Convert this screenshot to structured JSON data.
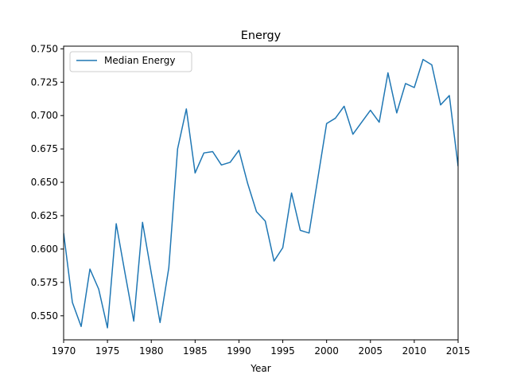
{
  "chart_data": {
    "type": "line",
    "title": "Energy",
    "xlabel": "Year",
    "ylabel": "",
    "xlim": [
      1970,
      2015
    ],
    "ylim": [
      0.532,
      0.752
    ],
    "xticks": [
      1970,
      1975,
      1980,
      1985,
      1990,
      1995,
      2000,
      2005,
      2010,
      2015
    ],
    "xtick_labels": [
      "1970",
      "1975",
      "1980",
      "1985",
      "1990",
      "1995",
      "2000",
      "2005",
      "2010",
      "2015"
    ],
    "yticks": [
      0.55,
      0.575,
      0.6,
      0.625,
      0.65,
      0.675,
      0.7,
      0.725,
      0.75
    ],
    "ytick_labels": [
      "0.550",
      "0.575",
      "0.600",
      "0.625",
      "0.650",
      "0.675",
      "0.700",
      "0.725",
      "0.750"
    ],
    "grid": false,
    "legend_position": "top-left",
    "series": [
      {
        "name": "Median Energy",
        "color": "#1f77b4",
        "x": [
          1970,
          1971,
          1972,
          1973,
          1974,
          1975,
          1976,
          1977,
          1978,
          1979,
          1980,
          1981,
          1982,
          1983,
          1984,
          1985,
          1986,
          1987,
          1988,
          1989,
          1990,
          1991,
          1992,
          1993,
          1994,
          1995,
          1996,
          1997,
          1998,
          1999,
          2000,
          2001,
          2002,
          2003,
          2004,
          2005,
          2006,
          2007,
          2008,
          2009,
          2010,
          2011,
          2012,
          2013,
          2014,
          2015
        ],
        "y": [
          0.612,
          0.56,
          0.542,
          0.585,
          0.57,
          0.541,
          0.619,
          0.582,
          0.546,
          0.62,
          0.582,
          0.545,
          0.586,
          0.675,
          0.705,
          0.657,
          0.672,
          0.673,
          0.663,
          0.665,
          0.674,
          0.649,
          0.628,
          0.621,
          0.591,
          0.601,
          0.642,
          0.614,
          0.612,
          0.653,
          0.694,
          0.698,
          0.707,
          0.686,
          0.695,
          0.704,
          0.695,
          0.732,
          0.702,
          0.724,
          0.721,
          0.742,
          0.738,
          0.708,
          0.715,
          0.662
        ]
      }
    ]
  }
}
